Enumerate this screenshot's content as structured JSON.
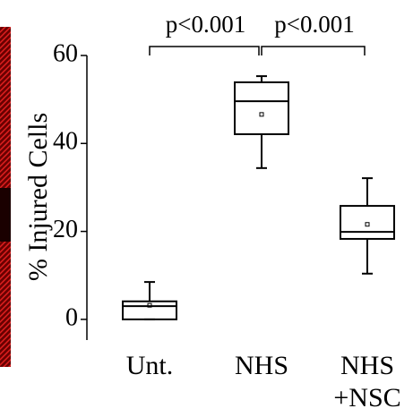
{
  "chart_data": {
    "type": "box",
    "y_label": "% Injured Cells",
    "categories": [
      [
        "Unt."
      ],
      [
        "NHS"
      ],
      [
        "NHS",
        "+NSC"
      ]
    ],
    "boxes": [
      {
        "whisker_low": 0,
        "q1": 0,
        "median": 3.0,
        "q3": 4.1,
        "whisker_high": 8.5,
        "mean": 3.2
      },
      {
        "whisker_low": 34.4,
        "q1": 42.1,
        "median": 49.6,
        "q3": 53.9,
        "whisker_high": 55.3,
        "mean": 46.6
      },
      {
        "whisker_low": 10.4,
        "q1": 18.3,
        "median": 19.9,
        "q3": 25.8,
        "whisker_high": 32.1,
        "mean": 21.6
      }
    ],
    "annotations": [
      "p<0.001",
      "p<0.001"
    ],
    "ylim": [
      -4.7,
      60
    ],
    "yticks": [
      0,
      20,
      40,
      60
    ],
    "color": "#000000"
  }
}
